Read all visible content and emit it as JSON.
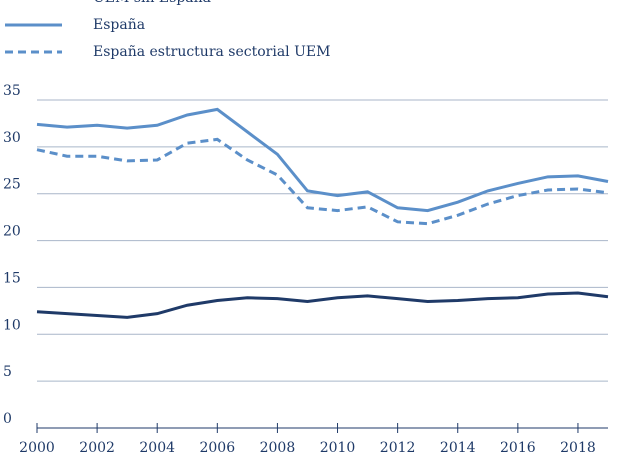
{
  "chart_data": {
    "type": "line",
    "x": [
      2000,
      2001,
      2002,
      2003,
      2004,
      2005,
      2006,
      2007,
      2008,
      2009,
      2010,
      2011,
      2012,
      2013,
      2014,
      2015,
      2016,
      2017,
      2018,
      2019
    ],
    "series": [
      {
        "name": "UEM sin España",
        "color": "#1f3a68",
        "style": "solid",
        "values": [
          12.4,
          12.2,
          12.0,
          11.8,
          12.2,
          13.1,
          13.6,
          13.9,
          13.8,
          13.5,
          13.9,
          14.1,
          13.8,
          13.5,
          13.6,
          13.8,
          13.9,
          14.3,
          14.4,
          14.0
        ]
      },
      {
        "name": "España",
        "color": "#5b8fc9",
        "style": "solid",
        "values": [
          32.4,
          32.1,
          32.3,
          32.0,
          32.3,
          33.4,
          34.0,
          31.6,
          29.2,
          25.3,
          24.8,
          25.2,
          23.5,
          23.2,
          24.1,
          25.3,
          26.1,
          26.8,
          26.9,
          26.3
        ]
      },
      {
        "name": "España estructura sectorial UEM",
        "color": "#5b8fc9",
        "style": "dashed",
        "values": [
          29.7,
          29.0,
          29.0,
          28.5,
          28.6,
          30.4,
          30.8,
          28.6,
          27.0,
          23.5,
          23.2,
          23.6,
          22.0,
          21.8,
          22.7,
          23.9,
          24.8,
          25.4,
          25.5,
          25.1
        ]
      }
    ],
    "xlim": [
      2000,
      2019
    ],
    "xticks": [
      2000,
      2002,
      2004,
      2006,
      2008,
      2010,
      2012,
      2014,
      2016,
      2018
    ],
    "ylim": [
      0,
      35
    ],
    "yticks": [
      0,
      5,
      10,
      15,
      20,
      25,
      30,
      35
    ],
    "grid": true
  }
}
